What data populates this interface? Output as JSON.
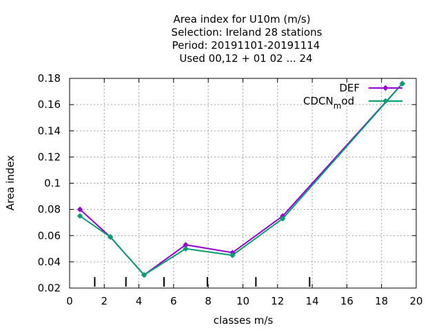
{
  "chart_data": {
    "type": "line",
    "title_lines": [
      "Area index  for U10m (m/s)",
      "Selection: Ireland      28 stations",
      "Period: 20191101-20191114",
      "Used  00,12  + 01 02 ... 24"
    ],
    "xlabel": "classes m/s",
    "ylabel": "Area index",
    "xlim": [
      0,
      20
    ],
    "ylim": [
      0.02,
      0.18
    ],
    "xticks": [
      "0",
      "2",
      "4",
      "6",
      "8",
      "10",
      "12",
      "14",
      "16",
      "18",
      "20"
    ],
    "yticks": [
      "0.02",
      "0.04",
      "0.06",
      "0.08",
      "0.1",
      "0.12",
      "0.14",
      "0.16",
      "0.18"
    ],
    "grid": true,
    "legend_position": "top-right",
    "class_markers": [
      1.45,
      3.25,
      5.45,
      7.95,
      10.75,
      13.85
    ],
    "series": [
      {
        "name": "DEF",
        "color": "#9400d3",
        "x": [
          0.6,
          2.35,
          4.3,
          6.7,
          9.4,
          12.3,
          19.2
        ],
        "y": [
          0.08,
          0.059,
          0.03,
          0.053,
          0.047,
          0.075,
          0.176
        ]
      },
      {
        "name": "CDCN",
        "name_sub": "m",
        "name_suffix": "od",
        "color": "#009e73",
        "x": [
          0.6,
          2.35,
          4.3,
          6.7,
          9.4,
          12.3,
          19.2
        ],
        "y": [
          0.075,
          0.059,
          0.03,
          0.05,
          0.045,
          0.073,
          0.176
        ]
      }
    ]
  }
}
